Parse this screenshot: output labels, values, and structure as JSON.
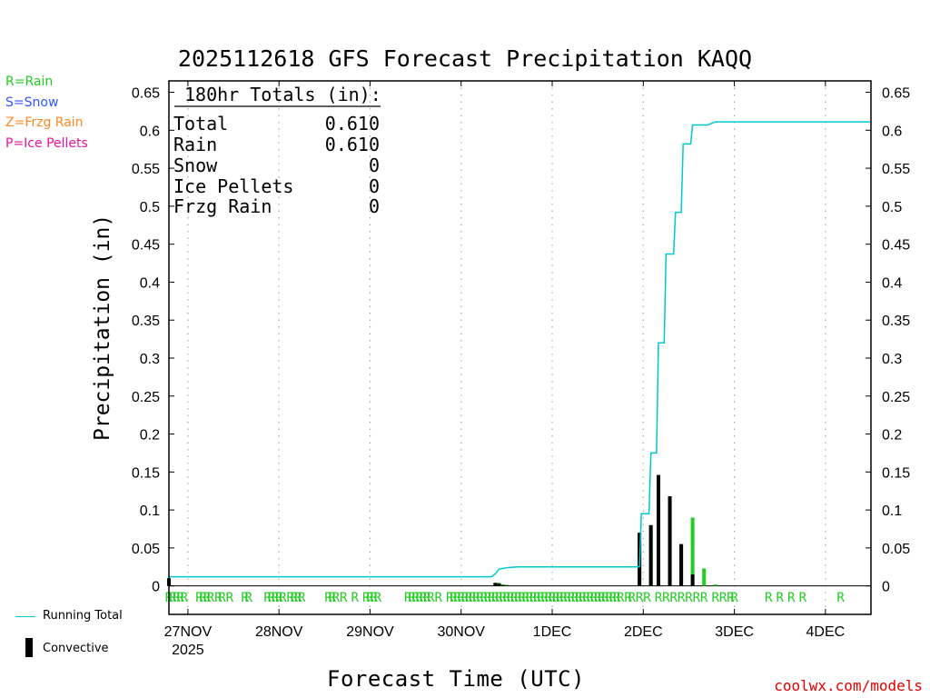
{
  "chart_data": {
    "type": "bar",
    "title": "2025112618 GFS Forecast Precipitation KAQQ",
    "xlabel": "Forecast Time (UTC)",
    "ylabel": "Precipitation (in)",
    "ylim": [
      -0.0375,
      0.665
    ],
    "x_axis": {
      "unit": "hours since 27NOV 00Z",
      "min": -5,
      "max": 180
    },
    "y_ticks": [
      "0.65",
      "0.6",
      "0.55",
      "0.5",
      "0.45",
      "0.4",
      "0.35",
      "0.3",
      "0.25",
      "0.2",
      "0.15",
      "0.1",
      "0.05",
      "0"
    ],
    "y_tick_values": [
      0.65,
      0.6,
      0.55,
      0.5,
      0.45,
      0.4,
      0.35,
      0.3,
      0.25,
      0.2,
      0.15,
      0.1,
      0.05,
      0
    ],
    "x_ticks": [
      {
        "label": "27NOV",
        "sub": "2025",
        "hour": 0
      },
      {
        "label": "28NOV",
        "hour": 24
      },
      {
        "label": "29NOV",
        "hour": 48
      },
      {
        "label": "30NOV",
        "hour": 72
      },
      {
        "label": "1DEC",
        "hour": 96
      },
      {
        "label": "2DEC",
        "hour": 120
      },
      {
        "label": "3DEC",
        "hour": 144
      },
      {
        "label": "4DEC",
        "hour": 168
      }
    ],
    "grid": "vertical dotted",
    "running_total": {
      "name": "Running Total",
      "color": "#00c8d0",
      "points": [
        [
          -5,
          0.012
        ],
        [
          -6,
          0.012
        ],
        [
          80,
          0.012
        ],
        [
          81,
          0.016
        ],
        [
          82,
          0.022
        ],
        [
          84,
          0.024
        ],
        [
          87,
          0.025
        ],
        [
          96,
          0.025
        ],
        [
          117,
          0.025
        ],
        [
          119,
          0.025
        ],
        [
          119.5,
          0.095
        ],
        [
          121.5,
          0.095
        ],
        [
          122,
          0.175
        ],
        [
          123.5,
          0.175
        ],
        [
          124,
          0.32
        ],
        [
          125.5,
          0.32
        ],
        [
          126,
          0.437
        ],
        [
          128,
          0.437
        ],
        [
          128.5,
          0.492
        ],
        [
          130,
          0.492
        ],
        [
          130.5,
          0.582
        ],
        [
          132.5,
          0.582
        ],
        [
          133,
          0.607
        ],
        [
          137,
          0.607
        ],
        [
          138,
          0.609
        ],
        [
          139,
          0.611
        ],
        [
          180,
          0.611
        ]
      ]
    },
    "bars": {
      "name": "Convective",
      "total_color": "#22cc22",
      "convective_color": "#000000",
      "items": [
        {
          "hour": -5,
          "total": 0.01,
          "convective": 0.01
        },
        {
          "hour": 81,
          "total": 0.004,
          "convective": 0.004
        },
        {
          "hour": 82,
          "total": 0.004,
          "convective": 0.003
        },
        {
          "hour": 83,
          "total": 0.002,
          "convective": 0.001
        },
        {
          "hour": 84,
          "total": 0.001,
          "convective": 0.001
        },
        {
          "hour": 119,
          "total": 0.07,
          "convective": 0.07
        },
        {
          "hour": 122,
          "total": 0.08,
          "convective": 0.08
        },
        {
          "hour": 124,
          "total": 0.146,
          "convective": 0.146
        },
        {
          "hour": 127,
          "total": 0.118,
          "convective": 0.118
        },
        {
          "hour": 130,
          "total": 0.055,
          "convective": 0.055
        },
        {
          "hour": 133,
          "total": 0.09,
          "convective": 0.015
        },
        {
          "hour": 136,
          "total": 0.023,
          "convective": 0.0
        },
        {
          "hour": 139,
          "total": 0.002,
          "convective": 0.0
        }
      ]
    },
    "precip_type_marks": {
      "symbol": "R",
      "hours": [
        -5,
        -4,
        -3,
        -2,
        -1,
        3,
        4,
        5,
        6,
        8,
        9,
        11,
        15,
        16,
        21,
        22,
        23,
        24,
        25,
        27,
        28,
        29,
        30,
        37,
        38,
        39,
        41,
        44,
        47,
        48,
        49,
        50,
        58,
        59,
        60,
        61,
        62,
        63,
        64,
        66,
        69,
        70,
        71,
        72,
        73,
        74,
        75,
        76,
        77,
        78,
        79,
        80,
        81,
        82,
        83,
        84,
        85,
        86,
        87,
        88,
        89,
        90,
        91,
        92,
        93,
        94,
        95,
        96,
        97,
        98,
        99,
        100,
        101,
        102,
        103,
        104,
        105,
        106,
        107,
        108,
        109,
        110,
        111,
        112,
        113,
        114,
        116,
        117,
        119,
        121,
        124,
        126,
        128,
        130,
        132,
        134,
        136,
        139,
        141,
        143,
        144,
        153,
        156,
        159,
        162,
        172
      ]
    },
    "legend": [
      "Running Total",
      "Convective"
    ]
  },
  "ptype_legend": [
    {
      "text": "R=Rain",
      "color": "#22cc22"
    },
    {
      "text": "S=Snow",
      "color": "#3355ff"
    },
    {
      "text": "Z=Frzg Rain",
      "color": "#ff8822"
    },
    {
      "text": "P=Ice Pellets",
      "color": "#ee1199"
    }
  ],
  "totals_box": {
    "header": "180hr Totals (in):",
    "rows": [
      {
        "label": "Total",
        "value": "0.610"
      },
      {
        "label": "Rain",
        "value": "0.610"
      },
      {
        "label": "Snow",
        "value": "0"
      },
      {
        "label": "Ice Pellets",
        "value": "0"
      },
      {
        "label": "Frzg Rain",
        "value": "0"
      }
    ]
  },
  "key": {
    "running_total": "Running Total",
    "convective": "Convective"
  },
  "credit": "coolwx.com/models"
}
